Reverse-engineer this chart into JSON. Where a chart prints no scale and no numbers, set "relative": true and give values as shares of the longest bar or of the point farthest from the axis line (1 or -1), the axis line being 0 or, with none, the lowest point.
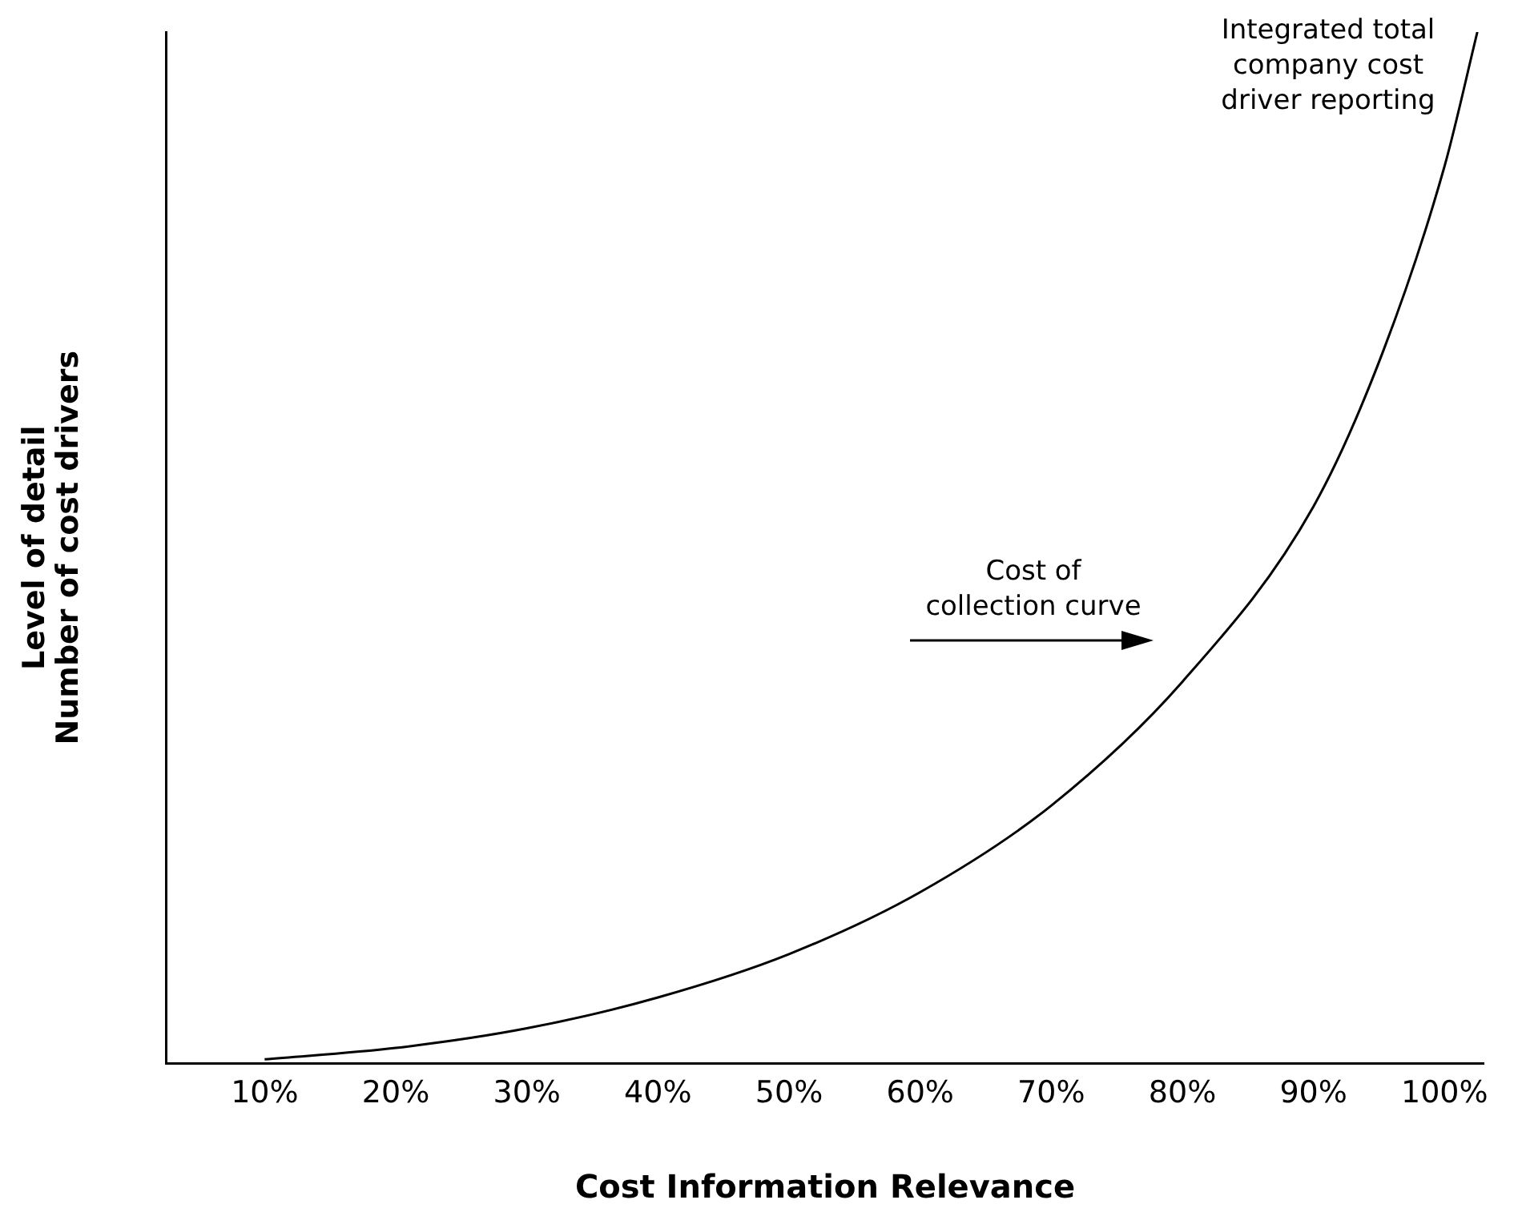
{
  "chart_data": {
    "type": "line",
    "xlabel": "Cost Information Relevance",
    "ylabel": "Level of detail\nNumber of cost drivers",
    "relative": true,
    "annotations": [
      "Integrated total company cost driver reporting",
      "Cost of collection curve"
    ],
    "xlim": [
      2.5,
      103
    ],
    "xticks": [
      {
        "value": 10,
        "label": "10%"
      },
      {
        "value": 20,
        "label": "20%"
      },
      {
        "value": 30,
        "label": "30%"
      },
      {
        "value": 40,
        "label": "40%"
      },
      {
        "value": 50,
        "label": "50%"
      },
      {
        "value": 60,
        "label": "60%"
      },
      {
        "value": 70,
        "label": "70%"
      },
      {
        "value": 80,
        "label": "80%"
      },
      {
        "value": 90,
        "label": "90%"
      },
      {
        "value": 100,
        "label": "100%"
      }
    ],
    "grid": false,
    "legend": false,
    "marker": "none",
    "line_style": "solid",
    "series": [
      {
        "color": "#000000",
        "x": [
          10,
          20,
          30,
          40,
          50,
          60,
          70,
          80,
          90,
          95.3,
          100,
          102.5
        ],
        "values": [
          0.004,
          0.015,
          0.034,
          0.064,
          0.106,
          0.166,
          0.25,
          0.37,
          0.54,
          0.69,
          0.87,
          1.0
        ]
      }
    ]
  }
}
